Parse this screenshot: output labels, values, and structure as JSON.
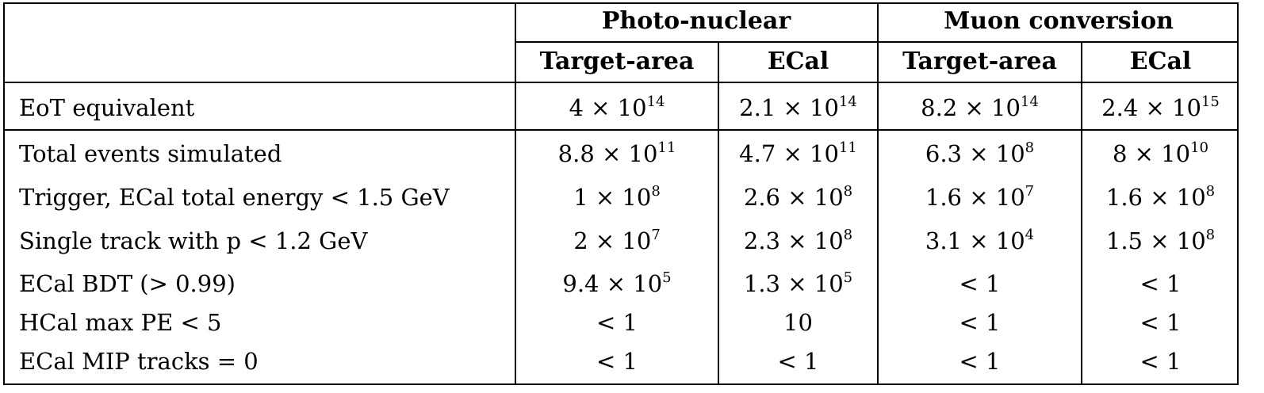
{
  "table": {
    "group_headers": [
      "Photo-nuclear",
      "Muon conversion"
    ],
    "sub_headers": [
      "Target-area",
      "ECal",
      "Target-area",
      "ECal"
    ],
    "rows": [
      {
        "label": "EoT equivalent",
        "cells": [
          [
            "4 × 10",
            "14"
          ],
          [
            "2.1 × 10",
            "14"
          ],
          [
            "8.2 × 10",
            "14"
          ],
          [
            "2.4 × 10",
            "15"
          ]
        ]
      },
      {
        "label": "Total events simulated",
        "cells": [
          [
            "8.8 × 10",
            "11"
          ],
          [
            "4.7 × 10",
            "11"
          ],
          [
            "6.3 × 10",
            "8"
          ],
          [
            "8 × 10",
            "10"
          ]
        ]
      },
      {
        "label": "Trigger, ECal total energy < 1.5 GeV",
        "cells": [
          [
            "1 × 10",
            "8"
          ],
          [
            "2.6 × 10",
            "8"
          ],
          [
            "1.6 × 10",
            "7"
          ],
          [
            "1.6 × 10",
            "8"
          ]
        ]
      },
      {
        "label": "Single track with p < 1.2 GeV",
        "cells": [
          [
            "2 × 10",
            "7"
          ],
          [
            "2.3 × 10",
            "8"
          ],
          [
            "3.1 × 10",
            "4"
          ],
          [
            "1.5 × 10",
            "8"
          ]
        ]
      },
      {
        "label": "ECal BDT (> 0.99)",
        "cells": [
          [
            "9.4 × 10",
            "5"
          ],
          [
            "1.3 × 10",
            "5"
          ],
          [
            "< 1",
            ""
          ],
          [
            "< 1",
            ""
          ]
        ]
      },
      {
        "label": "HCal max PE < 5",
        "cells": [
          [
            "< 1",
            ""
          ],
          [
            "10",
            ""
          ],
          [
            "< 1",
            ""
          ],
          [
            "< 1",
            ""
          ]
        ]
      },
      {
        "label": "ECal MIP tracks = 0",
        "cells": [
          [
            "< 1",
            ""
          ],
          [
            "< 1",
            ""
          ],
          [
            "< 1",
            ""
          ],
          [
            "< 1",
            ""
          ]
        ]
      }
    ]
  }
}
